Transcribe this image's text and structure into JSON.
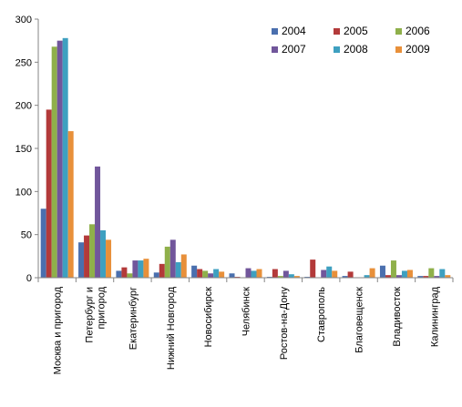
{
  "chart_data": {
    "type": "bar",
    "title": "",
    "xlabel": "",
    "ylabel": "",
    "ylim": [
      0,
      300
    ],
    "yticks": [
      0,
      50,
      100,
      150,
      200,
      250,
      300
    ],
    "grid": false,
    "legend_position": "top-right",
    "categories": [
      [
        "Москва и пригород"
      ],
      [
        "Петербург и",
        "пригород"
      ],
      [
        "Екатеринбург"
      ],
      [
        "Нижний Новгород"
      ],
      [
        "Новосибирск"
      ],
      [
        "Челябинск"
      ],
      [
        "Ростов-на-Дону"
      ],
      [
        "Ставрополь"
      ],
      [
        "Благовещенск"
      ],
      [
        "Владивосток"
      ],
      [
        "Калининград"
      ]
    ],
    "series": [
      {
        "name": "2004",
        "color": "#4a6fae",
        "values": [
          80,
          41,
          8,
          6,
          14,
          5,
          1,
          1,
          2,
          14,
          2
        ]
      },
      {
        "name": "2005",
        "color": "#b33a3a",
        "values": [
          195,
          49,
          12,
          16,
          10,
          1,
          10,
          21,
          7,
          3,
          2
        ]
      },
      {
        "name": "2006",
        "color": "#8fb04a",
        "values": [
          268,
          62,
          5,
          36,
          8,
          0,
          2,
          0,
          0,
          20,
          11
        ]
      },
      {
        "name": "2007",
        "color": "#71569b",
        "values": [
          275,
          129,
          20,
          44,
          5,
          11,
          8,
          9,
          0,
          3,
          2
        ]
      },
      {
        "name": "2008",
        "color": "#3ea0c0",
        "values": [
          278,
          55,
          20,
          18,
          10,
          8,
          4,
          13,
          3,
          8,
          10
        ]
      },
      {
        "name": "2009",
        "color": "#e8903a",
        "values": [
          170,
          44,
          22,
          27,
          7,
          10,
          2,
          8,
          11,
          9,
          3
        ]
      }
    ]
  }
}
